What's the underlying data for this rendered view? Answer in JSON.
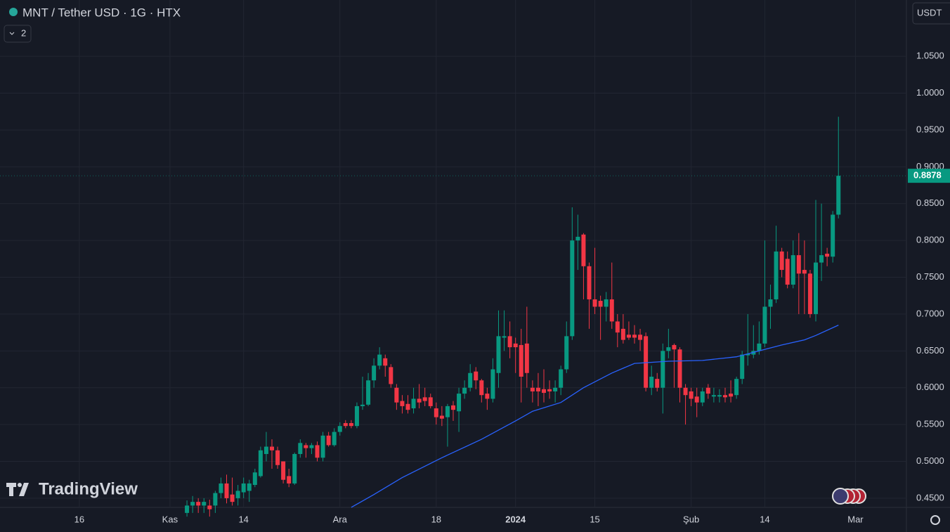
{
  "chart_data": {
    "type": "candlestick",
    "title": "MNT / Tether USD · 1G · HTX",
    "indicator_count": 2,
    "currency": "USDT",
    "brand": "TradingView",
    "last_price": 0.8878,
    "up_color": "#089981",
    "down_color": "#f23645",
    "grid": true,
    "ylim": [
      0.4375,
      1.1265
    ],
    "yticks": [
      {
        "value": 0.45,
        "label": "0.4500"
      },
      {
        "value": 0.5,
        "label": "0.5000"
      },
      {
        "value": 0.55,
        "label": "0.5500"
      },
      {
        "value": 0.6,
        "label": "0.6000"
      },
      {
        "value": 0.65,
        "label": "0.6500"
      },
      {
        "value": 0.7,
        "label": "0.7000"
      },
      {
        "value": 0.75,
        "label": "0.7500"
      },
      {
        "value": 0.8,
        "label": "0.8000"
      },
      {
        "value": 0.85,
        "label": "0.8500"
      },
      {
        "value": 0.9,
        "label": "0.9000"
      },
      {
        "value": 0.95,
        "label": "0.9500"
      },
      {
        "value": 1.0,
        "label": "1.0000"
      },
      {
        "value": 1.05,
        "label": "1.0500"
      }
    ],
    "xlim": [
      "2023-10-02",
      "2024-03-10"
    ],
    "xticks": [
      {
        "value": "2023-10-16",
        "label": "16"
      },
      {
        "value": "2023-11-01",
        "label": "Kas"
      },
      {
        "value": "2023-11-14",
        "label": "14"
      },
      {
        "value": "2023-12-01",
        "label": "Ara"
      },
      {
        "value": "2023-12-18",
        "label": "18"
      },
      {
        "value": "2024-01-01",
        "label": "2024"
      },
      {
        "value": "2024-01-15",
        "label": "15"
      },
      {
        "value": "2024-02-01",
        "label": "Şub"
      },
      {
        "value": "2024-02-14",
        "label": "14"
      },
      {
        "value": "2024-03-01",
        "label": "Mar"
      }
    ],
    "x": [
      "2023-11-04",
      "2023-11-05",
      "2023-11-06",
      "2023-11-07",
      "2023-11-08",
      "2023-11-09",
      "2023-11-10",
      "2023-11-11",
      "2023-11-12",
      "2023-11-13",
      "2023-11-14",
      "2023-11-15",
      "2023-11-16",
      "2023-11-17",
      "2023-11-18",
      "2023-11-19",
      "2023-11-20",
      "2023-11-21",
      "2023-11-22",
      "2023-11-23",
      "2023-11-24",
      "2023-11-25",
      "2023-11-26",
      "2023-11-27",
      "2023-11-28",
      "2023-11-29",
      "2023-11-30",
      "2023-12-01",
      "2023-12-02",
      "2023-12-03",
      "2023-12-04",
      "2023-12-05",
      "2023-12-06",
      "2023-12-07",
      "2023-12-08",
      "2023-12-09",
      "2023-12-10",
      "2023-12-11",
      "2023-12-12",
      "2023-12-13",
      "2023-12-14",
      "2023-12-15",
      "2023-12-16",
      "2023-12-17",
      "2023-12-18",
      "2023-12-19",
      "2023-12-20",
      "2023-12-21",
      "2023-12-22",
      "2023-12-23",
      "2023-12-24",
      "2023-12-25",
      "2023-12-26",
      "2023-12-27",
      "2023-12-28",
      "2023-12-29",
      "2023-12-30",
      "2023-12-31",
      "2024-01-01",
      "2024-01-02",
      "2024-01-03",
      "2024-01-04",
      "2024-01-05",
      "2024-01-06",
      "2024-01-07",
      "2024-01-08",
      "2024-01-09",
      "2024-01-10",
      "2024-01-11",
      "2024-01-12",
      "2024-01-13",
      "2024-01-14",
      "2024-01-15",
      "2024-01-16",
      "2024-01-17",
      "2024-01-18",
      "2024-01-19",
      "2024-01-20",
      "2024-01-21",
      "2024-01-22",
      "2024-01-23",
      "2024-01-24",
      "2024-01-25",
      "2024-01-26",
      "2024-01-27",
      "2024-01-28",
      "2024-01-29",
      "2024-01-30",
      "2024-01-31",
      "2024-02-01",
      "2024-02-02",
      "2024-02-03",
      "2024-02-04",
      "2024-02-05",
      "2024-02-06",
      "2024-02-07",
      "2024-02-08",
      "2024-02-09",
      "2024-02-10",
      "2024-02-11",
      "2024-02-12",
      "2024-02-13",
      "2024-02-14",
      "2024-02-15",
      "2024-02-16",
      "2024-02-17",
      "2024-02-18",
      "2024-02-19",
      "2024-02-20",
      "2024-02-21",
      "2024-02-22",
      "2024-02-23",
      "2024-02-24",
      "2024-02-25",
      "2024-02-26",
      "2024-02-27"
    ],
    "open": [
      0.43,
      0.44,
      0.445,
      0.44,
      0.44,
      0.44,
      0.457,
      0.47,
      0.455,
      0.45,
      0.458,
      0.46,
      0.468,
      0.48,
      0.51,
      0.52,
      0.515,
      0.5,
      0.48,
      0.47,
      0.51,
      0.522,
      0.518,
      0.522,
      0.505,
      0.535,
      0.522,
      0.54,
      0.552,
      0.552,
      0.548,
      0.575,
      0.577,
      0.61,
      0.63,
      0.64,
      0.628,
      0.6,
      0.582,
      0.578,
      0.572,
      0.585,
      0.587,
      0.587,
      0.572,
      0.562,
      0.56,
      0.576,
      0.568,
      0.592,
      0.6,
      0.622,
      0.61,
      0.592,
      0.585,
      0.62,
      0.668,
      0.67,
      0.66,
      0.658,
      0.66,
      0.6,
      0.6,
      0.598,
      0.598,
      0.595,
      0.6,
      0.625,
      0.67,
      0.8,
      0.808,
      0.765,
      0.72,
      0.718,
      0.71,
      0.72,
      0.69,
      0.68,
      0.672,
      0.672,
      0.672,
      0.67,
      0.6,
      0.612,
      0.6,
      0.65,
      0.658,
      0.652,
      0.6,
      0.595,
      0.588,
      0.58,
      0.6,
      0.588,
      0.588,
      0.59,
      0.592,
      0.59,
      0.612,
      0.644,
      0.645,
      0.65,
      0.66,
      0.71,
      0.72,
      0.785,
      0.775,
      0.74,
      0.78,
      0.76,
      0.755,
      0.7,
      0.77,
      0.782,
      0.778,
      0.835
    ],
    "high": [
      0.447,
      0.453,
      0.45,
      0.45,
      0.448,
      0.46,
      0.478,
      0.482,
      0.478,
      0.468,
      0.478,
      0.475,
      0.49,
      0.52,
      0.54,
      0.53,
      0.52,
      0.5,
      0.49,
      0.512,
      0.53,
      0.525,
      0.525,
      0.527,
      0.54,
      0.54,
      0.545,
      0.553,
      0.556,
      0.556,
      0.58,
      0.615,
      0.62,
      0.64,
      0.655,
      0.645,
      0.632,
      0.605,
      0.59,
      0.59,
      0.6,
      0.605,
      0.6,
      0.592,
      0.58,
      0.575,
      0.578,
      0.582,
      0.6,
      0.61,
      0.632,
      0.628,
      0.612,
      0.6,
      0.64,
      0.705,
      0.705,
      0.69,
      0.668,
      0.68,
      0.71,
      0.61,
      0.62,
      0.625,
      0.61,
      0.61,
      0.63,
      0.69,
      0.845,
      0.835,
      0.81,
      0.77,
      0.79,
      0.725,
      0.73,
      0.77,
      0.7,
      0.7,
      0.69,
      0.685,
      0.68,
      0.675,
      0.63,
      0.62,
      0.66,
      0.68,
      0.66,
      0.655,
      0.605,
      0.6,
      0.6,
      0.6,
      0.605,
      0.6,
      0.598,
      0.6,
      0.61,
      0.615,
      0.65,
      0.7,
      0.685,
      0.69,
      0.8,
      0.74,
      0.82,
      0.79,
      0.785,
      0.8,
      0.81,
      0.8,
      0.76,
      0.855,
      0.85,
      0.79,
      0.84,
      0.968
    ],
    "low": [
      0.425,
      0.43,
      0.43,
      0.43,
      0.425,
      0.43,
      0.45,
      0.443,
      0.44,
      0.44,
      0.45,
      0.445,
      0.465,
      0.478,
      0.5,
      0.49,
      0.49,
      0.47,
      0.465,
      0.468,
      0.505,
      0.505,
      0.51,
      0.5,
      0.5,
      0.52,
      0.52,
      0.535,
      0.545,
      0.545,
      0.545,
      0.57,
      0.575,
      0.6,
      0.625,
      0.615,
      0.6,
      0.57,
      0.565,
      0.565,
      0.565,
      0.572,
      0.575,
      0.572,
      0.55,
      0.548,
      0.52,
      0.555,
      0.54,
      0.585,
      0.595,
      0.598,
      0.58,
      0.57,
      0.58,
      0.6,
      0.65,
      0.64,
      0.62,
      0.58,
      0.6,
      0.58,
      0.575,
      0.58,
      0.585,
      0.58,
      0.59,
      0.62,
      0.665,
      0.76,
      0.72,
      0.68,
      0.7,
      0.665,
      0.69,
      0.68,
      0.655,
      0.66,
      0.665,
      0.66,
      0.65,
      0.595,
      0.59,
      0.595,
      0.565,
      0.64,
      0.6,
      0.58,
      0.55,
      0.575,
      0.56,
      0.575,
      0.585,
      0.58,
      0.58,
      0.58,
      0.58,
      0.585,
      0.605,
      0.63,
      0.64,
      0.645,
      0.655,
      0.68,
      0.715,
      0.75,
      0.735,
      0.735,
      0.7,
      0.7,
      0.695,
      0.69,
      0.745,
      0.765,
      0.77,
      0.83
    ],
    "close": [
      0.44,
      0.445,
      0.44,
      0.445,
      0.435,
      0.457,
      0.47,
      0.45,
      0.445,
      0.46,
      0.47,
      0.47,
      0.485,
      0.515,
      0.52,
      0.515,
      0.495,
      0.475,
      0.47,
      0.51,
      0.525,
      0.518,
      0.522,
      0.505,
      0.535,
      0.522,
      0.54,
      0.548,
      0.548,
      0.548,
      0.575,
      0.577,
      0.61,
      0.63,
      0.645,
      0.63,
      0.605,
      0.58,
      0.575,
      0.57,
      0.585,
      0.58,
      0.582,
      0.575,
      0.56,
      0.558,
      0.575,
      0.57,
      0.592,
      0.6,
      0.62,
      0.61,
      0.59,
      0.585,
      0.625,
      0.67,
      0.67,
      0.655,
      0.655,
      0.615,
      0.62,
      0.595,
      0.595,
      0.593,
      0.595,
      0.6,
      0.625,
      0.67,
      0.8,
      0.805,
      0.765,
      0.72,
      0.71,
      0.71,
      0.72,
      0.69,
      0.675,
      0.665,
      0.668,
      0.668,
      0.665,
      0.6,
      0.615,
      0.6,
      0.65,
      0.655,
      0.652,
      0.6,
      0.59,
      0.585,
      0.58,
      0.595,
      0.592,
      0.59,
      0.59,
      0.587,
      0.588,
      0.612,
      0.645,
      0.646,
      0.65,
      0.66,
      0.71,
      0.72,
      0.785,
      0.76,
      0.74,
      0.78,
      0.755,
      0.755,
      0.7,
      0.77,
      0.78,
      0.778,
      0.835,
      0.8878
    ],
    "ma": {
      "color": "#2962ff",
      "x": [
        "2023-12-03",
        "2023-12-07",
        "2023-12-12",
        "2023-12-19",
        "2023-12-26",
        "2024-01-01",
        "2024-01-04",
        "2024-01-09",
        "2024-01-13",
        "2024-01-18",
        "2024-01-22",
        "2024-01-28",
        "2024-02-03",
        "2024-02-09",
        "2024-02-13",
        "2024-02-17",
        "2024-02-21",
        "2024-02-23",
        "2024-02-27"
      ],
      "values": [
        0.4376,
        0.455,
        0.478,
        0.505,
        0.53,
        0.555,
        0.568,
        0.58,
        0.6,
        0.62,
        0.633,
        0.636,
        0.637,
        0.642,
        0.65,
        0.658,
        0.665,
        0.671,
        0.685
      ]
    }
  }
}
